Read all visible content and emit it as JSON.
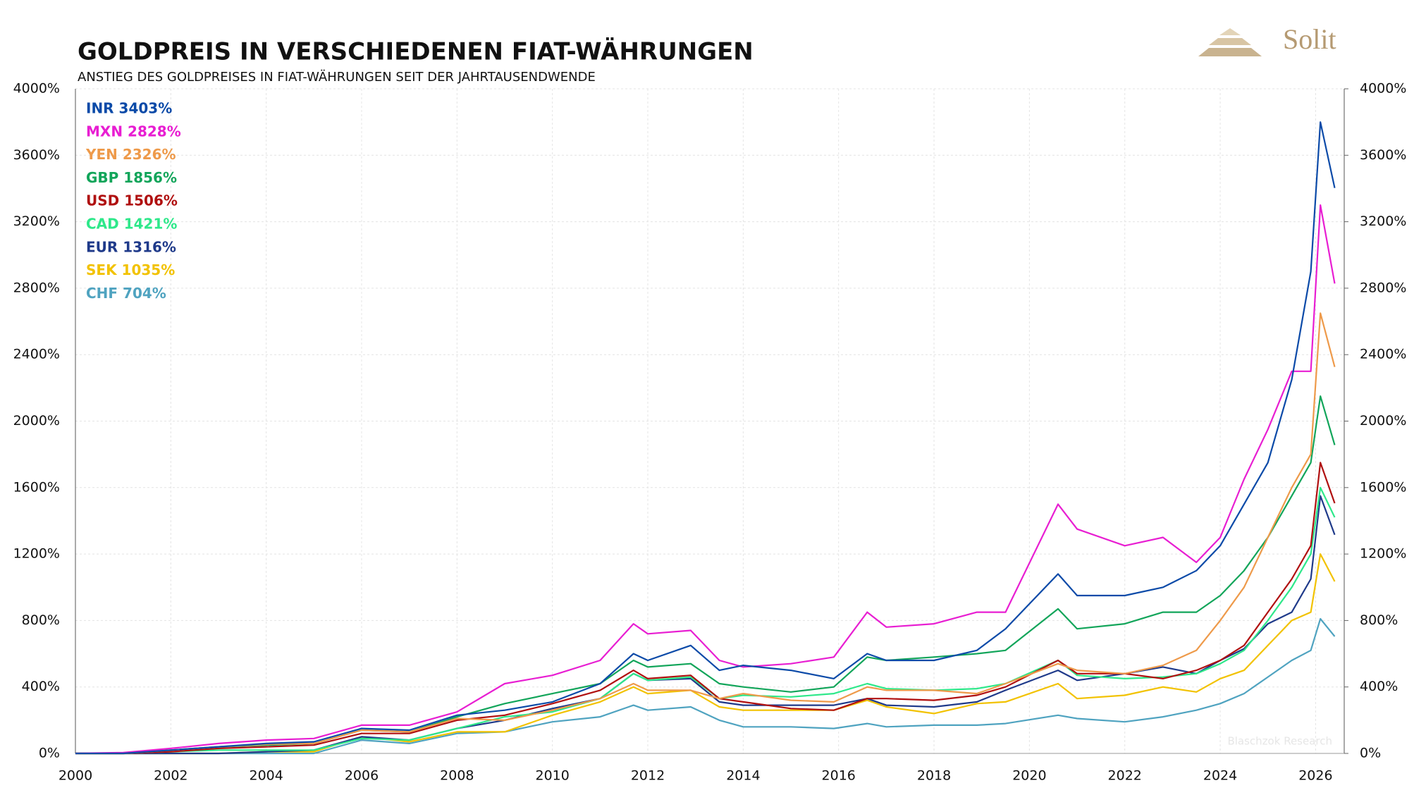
{
  "chart_data": {
    "type": "line",
    "title": "GOLDPREIS IN VERSCHIEDENEN FIAT-WÄHRUNGEN",
    "subtitle": "ANSTIEG DES GOLDPREISES IN FIAT-WÄHRUNGEN SEIT DER JAHRTAUSENDWENDE",
    "logo_text": "Solit",
    "watermark": "Blaschzok Research",
    "grid": true,
    "legend": "top-left",
    "x": [
      2000,
      2001,
      2002,
      2003,
      2004,
      2005,
      2006,
      2007,
      2008,
      2009,
      2010,
      2011,
      2011.7,
      2012,
      2012.9,
      2013.5,
      2014,
      2015,
      2015.9,
      2016.6,
      2017,
      2018,
      2018.9,
      2019.5,
      2020.6,
      2021,
      2022,
      2022.8,
      2023.5,
      2024,
      2024.5,
      2025,
      2025.5,
      2025.9,
      2026.1,
      2026.4
    ],
    "xlim": [
      2000,
      2026.6
    ],
    "xticks": [
      2000,
      2002,
      2004,
      2006,
      2008,
      2010,
      2012,
      2014,
      2016,
      2018,
      2020,
      2022,
      2024,
      2026
    ],
    "ylim": [
      0,
      4000
    ],
    "yticks": [
      {
        "value": 0,
        "label": "0%"
      },
      {
        "value": 400,
        "label": "400%"
      },
      {
        "value": 800,
        "label": "800%"
      },
      {
        "value": 1200,
        "label": "1200%"
      },
      {
        "value": 1600,
        "label": "1600%"
      },
      {
        "value": 2000,
        "label": "2000%"
      },
      {
        "value": 2400,
        "label": "2400%"
      },
      {
        "value": 2800,
        "label": "2800%"
      },
      {
        "value": 3200,
        "label": "3200%"
      },
      {
        "value": 3600,
        "label": "3600%"
      },
      {
        "value": 4000,
        "label": "4000%"
      }
    ],
    "y2lim": [
      0,
      4000
    ],
    "y2ticks": [
      {
        "value": 0,
        "label": "0%"
      },
      {
        "value": 400,
        "label": "400%"
      },
      {
        "value": 800,
        "label": "800%"
      },
      {
        "value": 1200,
        "label": "1200%"
      },
      {
        "value": 1600,
        "label": "1600%"
      },
      {
        "value": 2000,
        "label": "2000%"
      },
      {
        "value": 2400,
        "label": "2400%"
      },
      {
        "value": 2800,
        "label": "2800%"
      },
      {
        "value": 3200,
        "label": "3200%"
      },
      {
        "value": 3600,
        "label": "3600%"
      },
      {
        "value": 4000,
        "label": "4000%"
      }
    ],
    "series": [
      {
        "name": "CHF 704%",
        "color": "#4fa3c0",
        "values": [
          0,
          0,
          0,
          0,
          0,
          0,
          80,
          60,
          120,
          130,
          190,
          220,
          290,
          260,
          280,
          200,
          160,
          160,
          150,
          180,
          160,
          170,
          170,
          180,
          230,
          210,
          190,
          220,
          260,
          300,
          360,
          460,
          560,
          620,
          810,
          704
        ]
      },
      {
        "name": "SEK 1035%",
        "color": "#f2c200",
        "values": [
          0,
          0,
          0,
          0,
          10,
          10,
          100,
          70,
          130,
          130,
          230,
          310,
          400,
          360,
          380,
          280,
          260,
          260,
          260,
          320,
          280,
          240,
          300,
          310,
          420,
          330,
          350,
          400,
          370,
          450,
          500,
          650,
          800,
          850,
          1200,
          1035
        ]
      },
      {
        "name": "EUR 1316%",
        "color": "#1f3a8a",
        "values": [
          0,
          0,
          0,
          0,
          10,
          20,
          100,
          80,
          150,
          200,
          270,
          330,
          480,
          440,
          450,
          310,
          290,
          290,
          290,
          330,
          290,
          280,
          310,
          380,
          500,
          440,
          480,
          520,
          480,
          560,
          630,
          780,
          850,
          1050,
          1550,
          1316
        ]
      },
      {
        "name": "CAD 1421%",
        "color": "#2ee88a",
        "values": [
          0,
          0,
          10,
          20,
          20,
          20,
          90,
          80,
          150,
          220,
          250,
          330,
          480,
          440,
          460,
          330,
          350,
          340,
          360,
          420,
          390,
          380,
          390,
          420,
          560,
          470,
          450,
          460,
          480,
          540,
          620,
          800,
          1000,
          1200,
          1600,
          1421
        ]
      },
      {
        "name": "USD 1506%",
        "color": "#b01010",
        "values": [
          0,
          0,
          10,
          30,
          40,
          50,
          120,
          120,
          200,
          230,
          300,
          380,
          500,
          450,
          470,
          330,
          310,
          270,
          260,
          330,
          330,
          320,
          350,
          400,
          560,
          480,
          480,
          450,
          500,
          560,
          650,
          850,
          1050,
          1250,
          1750,
          1506
        ]
      },
      {
        "name": "GBP 1856%",
        "color": "#12a55a",
        "values": [
          0,
          0,
          20,
          40,
          50,
          60,
          140,
          130,
          220,
          300,
          360,
          420,
          560,
          520,
          540,
          420,
          400,
          370,
          400,
          580,
          560,
          580,
          600,
          620,
          870,
          750,
          780,
          850,
          850,
          950,
          1100,
          1300,
          1550,
          1750,
          2150,
          1856
        ]
      },
      {
        "name": "YEN 2326%",
        "color": "#ee9a4a",
        "values": [
          0,
          0,
          20,
          40,
          55,
          60,
          140,
          130,
          210,
          200,
          260,
          330,
          420,
          380,
          380,
          330,
          360,
          320,
          310,
          400,
          380,
          380,
          360,
          420,
          540,
          500,
          480,
          530,
          620,
          800,
          1000,
          1300,
          1600,
          1800,
          2650,
          2326
        ]
      },
      {
        "name": "MXN 2828%",
        "color": "#e81ed2",
        "values": [
          0,
          5,
          30,
          60,
          80,
          90,
          170,
          170,
          250,
          420,
          470,
          560,
          780,
          720,
          740,
          560,
          520,
          540,
          580,
          850,
          760,
          780,
          850,
          850,
          1500,
          1350,
          1250,
          1300,
          1150,
          1300,
          1650,
          1950,
          2300,
          2300,
          3300,
          2828
        ]
      },
      {
        "name": "INR 3403%",
        "color": "#0b4aa8",
        "values": [
          0,
          0,
          20,
          40,
          60,
          70,
          150,
          140,
          230,
          260,
          310,
          420,
          600,
          560,
          650,
          500,
          530,
          500,
          450,
          600,
          560,
          560,
          620,
          750,
          1080,
          950,
          950,
          1000,
          1100,
          1250,
          1500,
          1750,
          2250,
          2900,
          3800,
          3403
        ]
      }
    ]
  }
}
